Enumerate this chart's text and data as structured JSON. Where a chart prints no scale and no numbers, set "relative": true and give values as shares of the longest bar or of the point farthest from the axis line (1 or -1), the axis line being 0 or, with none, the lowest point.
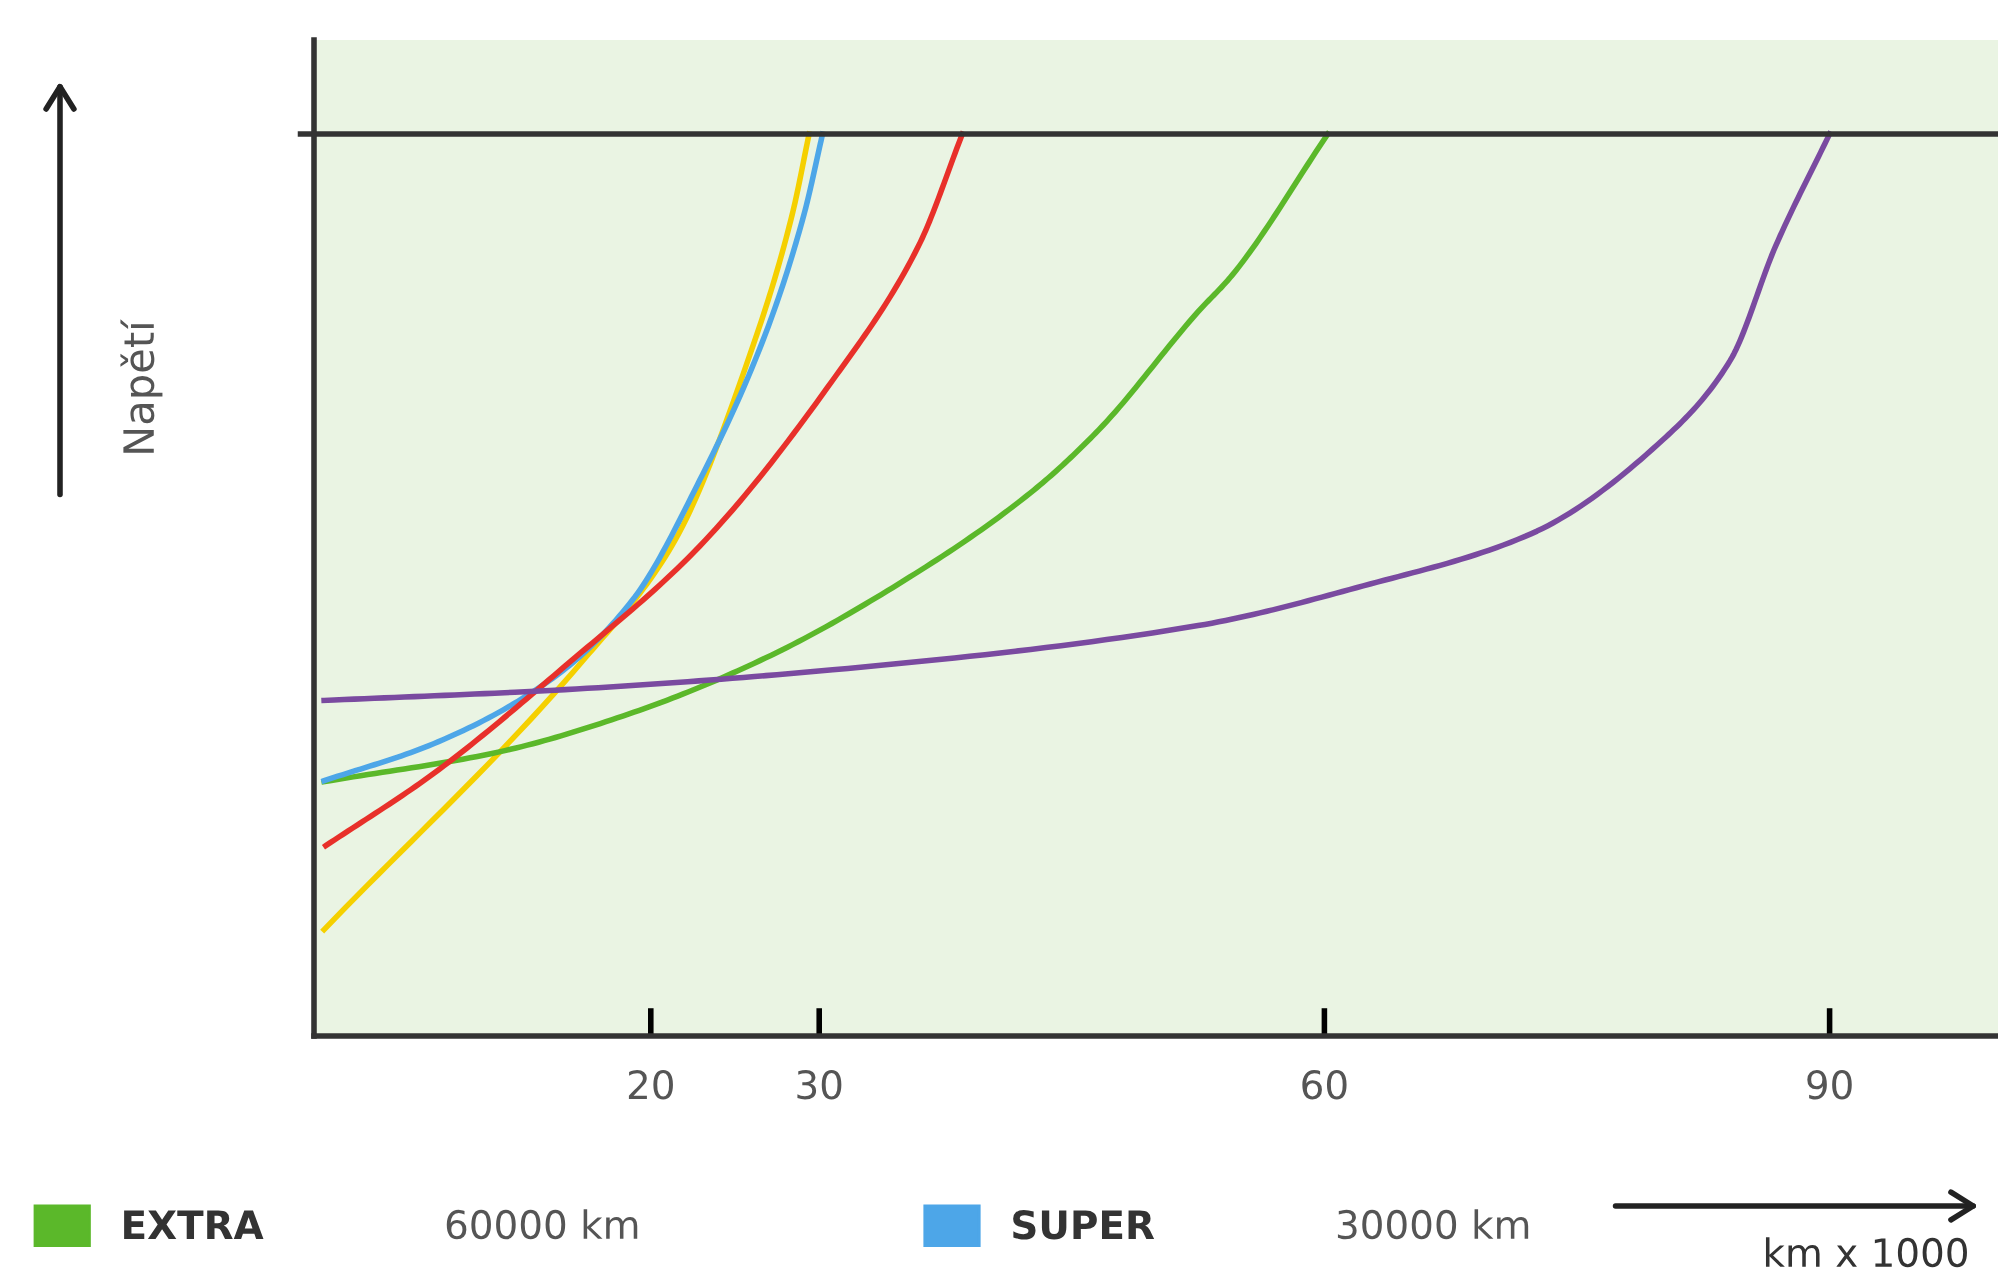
{
  "chart_data": {
    "type": "line",
    "relative": true,
    "ylabel": "Napětí",
    "xlabel": "km x 1000",
    "xlim": [
      0,
      100
    ],
    "xticks": [
      20,
      30,
      60,
      90
    ],
    "grid": false,
    "legend": "bottom left",
    "line_style": "solid",
    "ref_lines": [
      {
        "axis": "y",
        "value": 1,
        "color": "#333333"
      }
    ],
    "annotations": [
      "60000 km",
      "30000 km"
    ],
    "series": [
      {
        "color": "#f5d000",
        "x": [
          0.6,
          16.1,
          21.3,
          26.1,
          28.4,
          29.4
        ],
        "values": [
          0.118,
          0.419,
          0.545,
          0.767,
          0.911,
          1
        ]
      },
      {
        "name": "EXTRA",
        "color": "#5bb82a",
        "x": [
          0.6,
          11.0,
          19.0,
          26.8,
          34.7,
          42.6,
          46.6,
          52.5,
          54.5,
          60.2
        ],
        "values": [
          0.282,
          0.315,
          0.359,
          0.419,
          0.501,
          0.603,
          0.672,
          0.803,
          0.843,
          1
        ]
      },
      {
        "name": "SUPER",
        "color": "#4da6e8",
        "x": [
          0.6,
          7.1,
          14.2,
          18.9,
          22.9,
          26.8,
          29.1,
          30.2
        ],
        "values": [
          0.283,
          0.324,
          0.397,
          0.483,
          0.616,
          0.778,
          0.911,
          1
        ]
      },
      {
        "color": "#e8302a",
        "x": [
          0.7,
          7.1,
          14.9,
          22.9,
          30.8,
          35.9,
          38.5
        ],
        "values": [
          0.211,
          0.291,
          0.41,
          0.543,
          0.727,
          0.876,
          1
        ]
      },
      {
        "color": "#7a4aa0",
        "x": [
          0.6,
          14.9,
          30.8,
          52.5,
          62.3,
          72.3,
          80.1,
          84.1,
          86.8,
          90.0
        ],
        "values": [
          0.372,
          0.384,
          0.406,
          0.455,
          0.499,
          0.557,
          0.661,
          0.749,
          0.876,
          1
        ]
      }
    ]
  }
}
